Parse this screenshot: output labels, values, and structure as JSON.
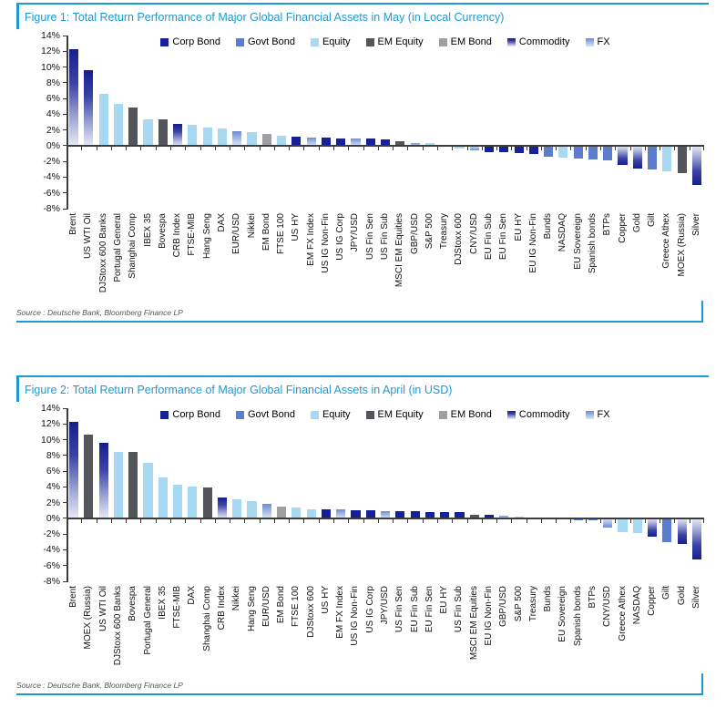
{
  "page": {
    "accent_color": "#1C9AD6",
    "axis_color": "#3C3C3C",
    "text_color": "#111111"
  },
  "palette": {
    "Corp Bond": {
      "type": "solid",
      "color": "#162099"
    },
    "Govt Bond": {
      "type": "solid",
      "color": "#5C7DCE"
    },
    "Equity": {
      "type": "solid",
      "color": "#A7D9F2"
    },
    "EM Equity": {
      "type": "solid",
      "color": "#53555A"
    },
    "EM Bond": {
      "type": "solid",
      "color": "#9EA0A3"
    },
    "Commodity": {
      "type": "gradient",
      "stops": [
        "#171E8C",
        "#3A43A5 35%",
        "#9CA3D4 70%",
        "#E9EAF6 100%"
      ]
    },
    "FX": {
      "type": "gradient",
      "stops": [
        "#6F8BD6",
        "#A9BEE8 55%",
        "#DAE5F7 100%"
      ]
    }
  },
  "chart_data": [
    {
      "type": "bar",
      "title": "Figure 1: Total Return Performance of Major Global Financial Assets in May (in Local Currency)",
      "source": "Source : Deutsche Bank, Bloomberg Finance LP",
      "ylim": [
        -8,
        14
      ],
      "yticks": [
        "14%",
        "12%",
        "10%",
        "8%",
        "6%",
        "4%",
        "2%",
        "0%",
        "-2%",
        "-4%",
        "-6%",
        "-8%"
      ],
      "grid": false,
      "legend_position": "top-center",
      "legend": [
        "Corp Bond",
        "Govt Bond",
        "Equity",
        "EM Equity",
        "EM Bond",
        "Commodity",
        "FX"
      ],
      "bars": [
        {
          "label": "Brent",
          "value": 12.3,
          "category": "Commodity"
        },
        {
          "label": "US WTI Oil",
          "value": 9.6,
          "category": "Commodity"
        },
        {
          "label": "DJStoxx 600 Banks",
          "value": 6.6,
          "category": "Equity"
        },
        {
          "label": "Portugal General",
          "value": 5.3,
          "category": "Equity"
        },
        {
          "label": "Shanghai Comp",
          "value": 4.9,
          "category": "EM Equity"
        },
        {
          "label": "IBEX 35",
          "value": 3.4,
          "category": "Equity"
        },
        {
          "label": "Bovespa",
          "value": 3.3,
          "category": "EM Equity"
        },
        {
          "label": "CRB Index",
          "value": 2.8,
          "category": "Commodity"
        },
        {
          "label": "FTSE-MIB",
          "value": 2.6,
          "category": "Equity"
        },
        {
          "label": "Hang Seng",
          "value": 2.3,
          "category": "Equity"
        },
        {
          "label": "DAX",
          "value": 2.2,
          "category": "Equity"
        },
        {
          "label": "EUR/USD",
          "value": 1.9,
          "category": "FX"
        },
        {
          "label": "Nikkei",
          "value": 1.7,
          "category": "Equity"
        },
        {
          "label": "EM Bond",
          "value": 1.5,
          "category": "EM Bond"
        },
        {
          "label": "FTSE 100",
          "value": 1.3,
          "category": "Equity"
        },
        {
          "label": "US HY",
          "value": 1.1,
          "category": "Corp Bond"
        },
        {
          "label": "EM FX Index",
          "value": 1.0,
          "category": "FX"
        },
        {
          "label": "US IG Non-Fin",
          "value": 1.0,
          "category": "Corp Bond"
        },
        {
          "label": "US IG Corp",
          "value": 0.9,
          "category": "Corp Bond"
        },
        {
          "label": "JPY/USD",
          "value": 0.9,
          "category": "FX"
        },
        {
          "label": "US Fin Sen",
          "value": 0.9,
          "category": "Corp Bond"
        },
        {
          "label": "US Fin Sub",
          "value": 0.8,
          "category": "Corp Bond"
        },
        {
          "label": "MSCI EM Equities",
          "value": 0.6,
          "category": "EM Equity"
        },
        {
          "label": "GBP/USD",
          "value": 0.3,
          "category": "FX"
        },
        {
          "label": "S&P 500",
          "value": 0.3,
          "category": "Equity"
        },
        {
          "label": "Treasury",
          "value": 0.1,
          "category": "Govt Bond"
        },
        {
          "label": "DJStoxx 600",
          "value": -0.4,
          "category": "Equity"
        },
        {
          "label": "CNY/USD",
          "value": -0.6,
          "category": "FX"
        },
        {
          "label": "EU Fin Sub",
          "value": -0.8,
          "category": "Corp Bond"
        },
        {
          "label": "EU Fin Sen",
          "value": -0.8,
          "category": "Corp Bond"
        },
        {
          "label": "EU HY",
          "value": -0.9,
          "category": "Corp Bond"
        },
        {
          "label": "EU IG Non-Fin",
          "value": -1.1,
          "category": "Corp Bond"
        },
        {
          "label": "Bunds",
          "value": -1.4,
          "category": "Govt Bond"
        },
        {
          "label": "NASDAQ",
          "value": -1.5,
          "category": "Equity"
        },
        {
          "label": "EU Sovereign",
          "value": -1.6,
          "category": "Govt Bond"
        },
        {
          "label": "Spanish bonds",
          "value": -1.7,
          "category": "Govt Bond"
        },
        {
          "label": "BTPs",
          "value": -1.9,
          "category": "Govt Bond"
        },
        {
          "label": "Copper",
          "value": -2.4,
          "category": "Commodity"
        },
        {
          "label": "Gold",
          "value": -2.9,
          "category": "Commodity"
        },
        {
          "label": "Gilt",
          "value": -3.0,
          "category": "Govt Bond"
        },
        {
          "label": "Greece Athex",
          "value": -3.3,
          "category": "Equity"
        },
        {
          "label": "MOEX (Russia)",
          "value": -3.5,
          "category": "EM Equity"
        },
        {
          "label": "Silver",
          "value": -5.0,
          "category": "Commodity"
        }
      ]
    },
    {
      "type": "bar",
      "title": "Figure 2: Total Return Performance of Major Global Financial Assets in April (in USD)",
      "source": "Source : Deutsche Bank, Bloomberg Finance LP",
      "ylim": [
        -8,
        14
      ],
      "yticks": [
        "14%",
        "12%",
        "10%",
        "8%",
        "6%",
        "4%",
        "2%",
        "0%",
        "-2%",
        "-4%",
        "-6%",
        "-8%"
      ],
      "grid": false,
      "legend_position": "top-center",
      "legend": [
        "Corp Bond",
        "Govt Bond",
        "Equity",
        "EM Equity",
        "EM Bond",
        "Commodity",
        "FX"
      ],
      "bars": [
        {
          "label": "Brent",
          "value": 12.3,
          "category": "Commodity"
        },
        {
          "label": "MOEX (Russia)",
          "value": 10.7,
          "category": "EM Equity"
        },
        {
          "label": "US WTI Oil",
          "value": 9.6,
          "category": "Commodity"
        },
        {
          "label": "DJStoxx 600 Banks",
          "value": 8.5,
          "category": "Equity"
        },
        {
          "label": "Bovespa",
          "value": 8.4,
          "category": "EM Equity"
        },
        {
          "label": "Portugal General",
          "value": 7.0,
          "category": "Equity"
        },
        {
          "label": "IBEX 35",
          "value": 5.2,
          "category": "Equity"
        },
        {
          "label": "FTSE-MIB",
          "value": 4.3,
          "category": "Equity"
        },
        {
          "label": "DAX",
          "value": 4.0,
          "category": "Equity"
        },
        {
          "label": "Shanghai Comp",
          "value": 3.9,
          "category": "EM Equity"
        },
        {
          "label": "CRB Index",
          "value": 2.7,
          "category": "Commodity"
        },
        {
          "label": "Nikkei",
          "value": 2.4,
          "category": "Equity"
        },
        {
          "label": "Hang Seng",
          "value": 2.2,
          "category": "Equity"
        },
        {
          "label": "EUR/USD",
          "value": 1.9,
          "category": "FX"
        },
        {
          "label": "EM Bond",
          "value": 1.5,
          "category": "EM Bond"
        },
        {
          "label": "FTSE 100",
          "value": 1.4,
          "category": "Equity"
        },
        {
          "label": "DJStoxx 600",
          "value": 1.2,
          "category": "Equity"
        },
        {
          "label": "US HY",
          "value": 1.1,
          "category": "Corp Bond"
        },
        {
          "label": "EM FX Index",
          "value": 1.1,
          "category": "FX"
        },
        {
          "label": "US IG Non-Fin",
          "value": 1.0,
          "category": "Corp Bond"
        },
        {
          "label": "US IG Corp",
          "value": 1.0,
          "category": "Corp Bond"
        },
        {
          "label": "JPY/USD",
          "value": 0.9,
          "category": "FX"
        },
        {
          "label": "US Fin Sen",
          "value": 0.9,
          "category": "Corp Bond"
        },
        {
          "label": "EU Fin Sub",
          "value": 0.9,
          "category": "Corp Bond"
        },
        {
          "label": "EU Fin Sen",
          "value": 0.85,
          "category": "Corp Bond"
        },
        {
          "label": "EU HY",
          "value": 0.8,
          "category": "Corp Bond"
        },
        {
          "label": "US Fin Sub",
          "value": 0.75,
          "category": "Corp Bond"
        },
        {
          "label": "MSCI EM Equities",
          "value": 0.5,
          "category": "EM Equity"
        },
        {
          "label": "EU IG Non-Fin",
          "value": 0.4,
          "category": "Corp Bond"
        },
        {
          "label": "GBP/USD",
          "value": 0.3,
          "category": "FX"
        },
        {
          "label": "S&P 500",
          "value": 0.2,
          "category": "Equity"
        },
        {
          "label": "Treasury",
          "value": 0.05,
          "category": "Govt Bond"
        },
        {
          "label": "Bunds",
          "value": -0.1,
          "category": "Govt Bond"
        },
        {
          "label": "EU Sovereign",
          "value": -0.15,
          "category": "Govt Bond"
        },
        {
          "label": "Spanish bonds",
          "value": -0.2,
          "category": "Govt Bond"
        },
        {
          "label": "BTPs",
          "value": -0.3,
          "category": "Govt Bond"
        },
        {
          "label": "CNY/USD",
          "value": -1.2,
          "category": "FX"
        },
        {
          "label": "Greece Athex",
          "value": -1.8,
          "category": "Equity"
        },
        {
          "label": "NASDAQ",
          "value": -1.9,
          "category": "Equity"
        },
        {
          "label": "Copper",
          "value": -2.3,
          "category": "Commodity"
        },
        {
          "label": "Gilt",
          "value": -3.0,
          "category": "Govt Bond"
        },
        {
          "label": "Gold",
          "value": -3.2,
          "category": "Commodity"
        },
        {
          "label": "Silver",
          "value": -5.2,
          "category": "Commodity"
        }
      ]
    }
  ]
}
